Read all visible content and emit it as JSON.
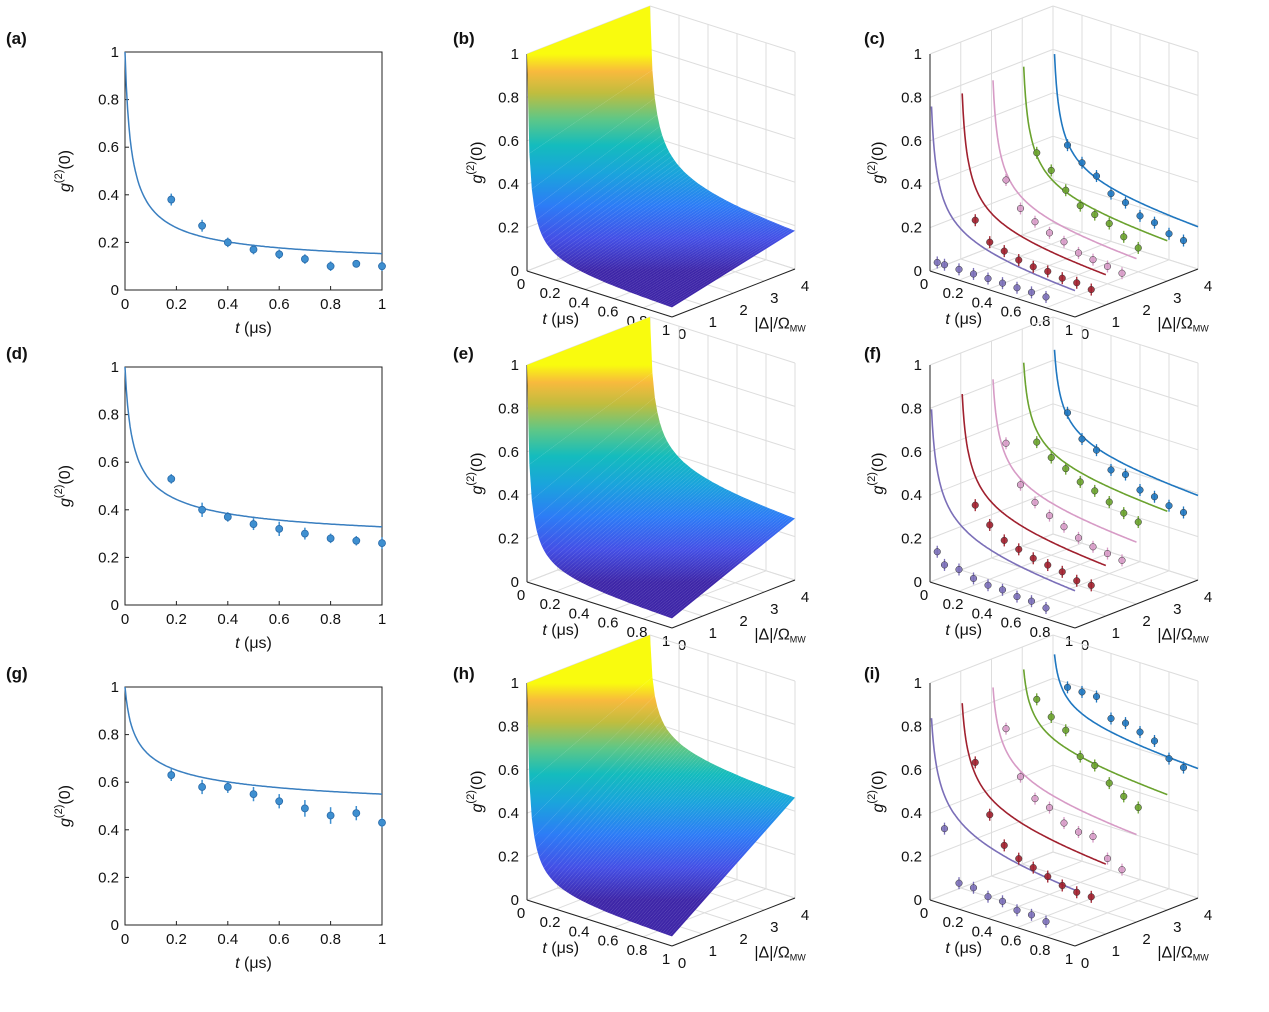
{
  "colors": {
    "fit2d": "#3a7fc0",
    "marker2d": "#3e8fd0",
    "series": [
      "#7b6fb8",
      "#a0202e",
      "#d79bc6",
      "#6aa22e",
      "#1f77c0"
    ],
    "axis": "#222222",
    "grid": "#dddddd"
  },
  "common": {
    "t_ticks": [
      "0",
      "0.2",
      "0.4",
      "0.6",
      "0.8",
      "1"
    ],
    "t_ticks_3d": [
      "0",
      "0.2",
      "0.4",
      "0.6",
      "0.8",
      "1"
    ],
    "g_ticks": [
      "0",
      "0.2",
      "0.4",
      "0.6",
      "0.8",
      "1"
    ],
    "d_ticks": [
      "0",
      "1",
      "2",
      "3",
      "4"
    ],
    "xlabel_var": "t",
    "xlabel_unit": "(μs)",
    "ylabel_main": "g",
    "ylabel_sup": "(2)",
    "ylabel_arg": "(0)",
    "dlabel_main": "|Δ|/Ω",
    "dlabel_sub": "MW"
  },
  "chart_data": [
    {
      "panel": "(a)",
      "type": "scatter",
      "x": [
        0.18,
        0.3,
        0.4,
        0.5,
        0.6,
        0.7,
        0.8,
        0.9,
        1.0
      ],
      "y": [
        0.38,
        0.27,
        0.2,
        0.17,
        0.15,
        0.13,
        0.1,
        0.11,
        0.1
      ],
      "err": [
        0.025,
        0.025,
        0.02,
        0.02,
        0.02,
        0.02,
        0.02,
        0.015,
        0.02
      ],
      "fit": {
        "a": 0.11,
        "p": 0.65
      },
      "xlim": [
        0,
        1
      ],
      "ylim": [
        0,
        1
      ]
    },
    {
      "panel": "(b)",
      "type": "surface",
      "floor": 0.08,
      "xlim": [
        0,
        1
      ],
      "ylim": [
        0,
        4
      ],
      "zlim": [
        0,
        1
      ]
    },
    {
      "panel": "(c)",
      "type": "line",
      "offsets": [
        0,
        1,
        2,
        3,
        4
      ],
      "series": [
        {
          "x": [
            0.05,
            0.1,
            0.2,
            0.3,
            0.4,
            0.5,
            0.6,
            0.7,
            0.8
          ],
          "y": [
            0.05,
            0.05,
            0.05,
            0.05,
            0.05,
            0.05,
            0.05,
            0.05,
            0.05
          ]
        },
        {
          "x": [
            0.1,
            0.2,
            0.3,
            0.4,
            0.5,
            0.6,
            0.7,
            0.8,
            0.9
          ],
          "y": [
            0.2,
            0.12,
            0.1,
            0.08,
            0.07,
            0.07,
            0.06,
            0.06,
            0.05
          ]
        },
        {
          "x": [
            0.1,
            0.2,
            0.3,
            0.4,
            0.5,
            0.6,
            0.7,
            0.8,
            0.9
          ],
          "y": [
            0.33,
            0.22,
            0.18,
            0.15,
            0.13,
            0.1,
            0.09,
            0.08,
            0.07
          ]
        },
        {
          "x": [
            0.1,
            0.2,
            0.3,
            0.4,
            0.5,
            0.6,
            0.7,
            0.8
          ],
          "y": [
            0.4,
            0.34,
            0.27,
            0.22,
            0.2,
            0.18,
            0.14,
            0.11
          ]
        },
        {
          "x": [
            0.1,
            0.2,
            0.3,
            0.4,
            0.5,
            0.6,
            0.7,
            0.8,
            0.9
          ],
          "y": [
            0.38,
            0.32,
            0.28,
            0.22,
            0.2,
            0.16,
            0.15,
            0.12,
            0.11
          ]
        }
      ],
      "fit_a": [
        0.04,
        0.06,
        0.08,
        0.11,
        0.12
      ],
      "fit_p": 0.6,
      "xlim": [
        0,
        1
      ],
      "ylim": [
        0,
        4
      ],
      "zlim": [
        0,
        1
      ]
    },
    {
      "panel": "(d)",
      "type": "scatter",
      "x": [
        0.18,
        0.3,
        0.4,
        0.5,
        0.6,
        0.7,
        0.8,
        0.9,
        1.0
      ],
      "y": [
        0.53,
        0.4,
        0.37,
        0.34,
        0.32,
        0.3,
        0.28,
        0.27,
        0.26
      ],
      "err": [
        0.02,
        0.03,
        0.02,
        0.025,
        0.03,
        0.025,
        0.02,
        0.02,
        0.025
      ],
      "fit": {
        "a": 0.25,
        "p": 0.5
      },
      "xlim": [
        0,
        1
      ],
      "ylim": [
        0,
        1
      ]
    },
    {
      "panel": "(e)",
      "type": "surface",
      "floor": 0.2,
      "xlim": [
        0,
        1
      ],
      "ylim": [
        0,
        4
      ],
      "zlim": [
        0,
        1
      ]
    },
    {
      "panel": "(f)",
      "type": "line",
      "offsets": [
        0,
        1,
        2,
        3,
        4
      ],
      "series": [
        {
          "x": [
            0.05,
            0.1,
            0.2,
            0.3,
            0.4,
            0.5,
            0.6,
            0.7,
            0.8
          ],
          "y": [
            0.15,
            0.1,
            0.1,
            0.08,
            0.07,
            0.07,
            0.06,
            0.06,
            0.05
          ]
        },
        {
          "x": [
            0.1,
            0.2,
            0.3,
            0.4,
            0.5,
            0.6,
            0.7,
            0.8,
            0.9
          ],
          "y": [
            0.32,
            0.25,
            0.2,
            0.18,
            0.16,
            0.15,
            0.14,
            0.12,
            0.12
          ]
        },
        {
          "x": [
            0.1,
            0.2,
            0.3,
            0.4,
            0.5,
            0.6,
            0.7,
            0.8,
            0.9
          ],
          "y": [
            0.55,
            0.38,
            0.32,
            0.28,
            0.25,
            0.22,
            0.2,
            0.19,
            0.18
          ]
        },
        {
          "x": [
            0.1,
            0.2,
            0.3,
            0.4,
            0.5,
            0.6,
            0.7,
            0.8
          ],
          "y": [
            0.5,
            0.45,
            0.42,
            0.38,
            0.36,
            0.33,
            0.3,
            0.28
          ]
        },
        {
          "x": [
            0.1,
            0.2,
            0.3,
            0.4,
            0.5,
            0.6,
            0.7,
            0.8,
            0.9
          ],
          "y": [
            0.58,
            0.48,
            0.45,
            0.38,
            0.38,
            0.33,
            0.32,
            0.3,
            0.29
          ]
        }
      ],
      "fit_a": [
        0.05,
        0.12,
        0.18,
        0.28,
        0.3
      ],
      "fit_p": 0.5,
      "xlim": [
        0,
        1
      ],
      "ylim": [
        0,
        4
      ],
      "zlim": [
        0,
        1
      ]
    },
    {
      "panel": "(g)",
      "type": "scatter",
      "x": [
        0.18,
        0.3,
        0.4,
        0.5,
        0.6,
        0.7,
        0.8,
        0.9,
        1.0
      ],
      "y": [
        0.63,
        0.58,
        0.58,
        0.55,
        0.52,
        0.49,
        0.46,
        0.47,
        0.43
      ],
      "err": [
        0.025,
        0.03,
        0.025,
        0.03,
        0.03,
        0.035,
        0.035,
        0.03,
        0.02
      ],
      "fit": {
        "a": 0.43,
        "p": 0.35
      },
      "xlim": [
        0,
        1
      ],
      "ylim": [
        0,
        1
      ]
    },
    {
      "panel": "(h)",
      "type": "surface",
      "floor": 0.4,
      "xlim": [
        0,
        1
      ],
      "ylim": [
        0,
        4
      ],
      "zlim": [
        0,
        1
      ]
    },
    {
      "panel": "(i)",
      "type": "line",
      "offsets": [
        0,
        1,
        2,
        3,
        4
      ],
      "series": [
        {
          "x": [
            0.1,
            0.2,
            0.3,
            0.4,
            0.5,
            0.6,
            0.7,
            0.8
          ],
          "y": [
            0.35,
            0.12,
            0.12,
            0.1,
            0.1,
            0.08,
            0.08,
            0.07
          ]
        },
        {
          "x": [
            0.1,
            0.2,
            0.3,
            0.4,
            0.5,
            0.6,
            0.7,
            0.8,
            0.9
          ],
          "y": [
            0.6,
            0.38,
            0.26,
            0.22,
            0.2,
            0.18,
            0.16,
            0.15,
            0.15
          ]
        },
        {
          "x": [
            0.1,
            0.2,
            0.3,
            0.4,
            0.5,
            0.6,
            0.7,
            0.8,
            0.9
          ],
          "y": [
            0.7,
            0.5,
            0.42,
            0.4,
            0.35,
            0.33,
            0.33,
            0.25,
            0.22
          ]
        },
        {
          "x": [
            0.1,
            0.2,
            0.3,
            0.4,
            0.5,
            0.6,
            0.7,
            0.8
          ],
          "y": [
            0.78,
            0.72,
            0.68,
            0.58,
            0.56,
            0.5,
            0.46,
            0.43
          ]
        },
        {
          "x": [
            0.1,
            0.2,
            0.3,
            0.4,
            0.5,
            0.6,
            0.7,
            0.8,
            0.9
          ],
          "y": [
            0.78,
            0.78,
            0.78,
            0.7,
            0.7,
            0.68,
            0.66,
            0.6,
            0.58
          ]
        }
      ],
      "fit_a": [
        0.08,
        0.16,
        0.26,
        0.42,
        0.5
      ],
      "fit_p": 0.4,
      "xlim": [
        0,
        1
      ],
      "ylim": [
        0,
        4
      ],
      "zlim": [
        0,
        1
      ]
    }
  ]
}
